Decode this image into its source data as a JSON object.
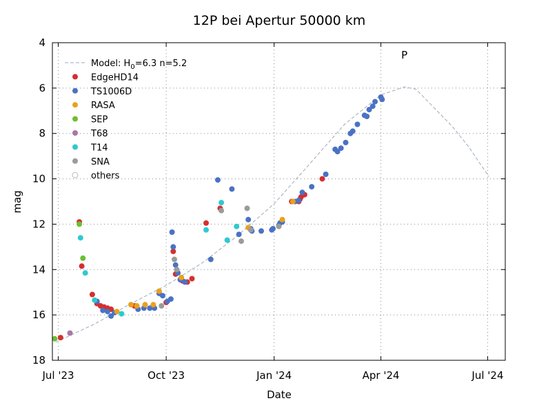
{
  "chart_data": {
    "type": "scatter",
    "title": "12P bei Apertur 50000 km",
    "xlabel": "Date",
    "ylabel": "mag",
    "x_axis": {
      "kind": "date",
      "range": [
        "2023-06-26",
        "2024-07-16"
      ],
      "ticks": [
        {
          "date": "2023-07-01",
          "label": "Jul '23"
        },
        {
          "date": "2023-10-01",
          "label": "Oct '23"
        },
        {
          "date": "2024-01-01",
          "label": "Jan '24"
        },
        {
          "date": "2024-04-01",
          "label": "Apr '24"
        },
        {
          "date": "2024-07-01",
          "label": "Jul '24"
        }
      ]
    },
    "y_axis": {
      "range": [
        4,
        18
      ],
      "inverted": true,
      "ticks": [
        4,
        6,
        8,
        10,
        12,
        14,
        16,
        18
      ]
    },
    "grid": true,
    "legend_position": "top-left",
    "annotations": [
      {
        "text": "P",
        "date": "2024-04-21",
        "mag": 4.7
      }
    ],
    "model": {
      "name": "Model: H0=6.3 n=5.2",
      "name_main": "Model: H",
      "name_sub": "0",
      "name_rest": "=6.3 n=5.2",
      "color": "#9aa9b8",
      "points": [
        [
          "2023-06-29",
          17.2
        ],
        [
          "2023-08-01",
          16.4
        ],
        [
          "2023-09-01",
          15.5
        ],
        [
          "2023-10-01",
          14.7
        ],
        [
          "2023-11-01",
          13.7
        ],
        [
          "2023-12-01",
          12.5
        ],
        [
          "2024-01-01",
          11.1
        ],
        [
          "2024-02-01",
          9.3
        ],
        [
          "2024-03-01",
          7.6
        ],
        [
          "2024-04-01",
          6.3
        ],
        [
          "2024-04-21",
          5.95
        ],
        [
          "2024-05-01",
          6.05
        ],
        [
          "2024-05-15",
          6.8
        ],
        [
          "2024-06-01",
          7.7
        ],
        [
          "2024-06-15",
          8.6
        ],
        [
          "2024-07-02",
          9.9
        ]
      ]
    },
    "series": [
      {
        "name": "EdgeHD14",
        "color": "#d62f2f",
        "points": [
          [
            "2023-07-03",
            17.0
          ],
          [
            "2023-07-19",
            11.9
          ],
          [
            "2023-07-21",
            13.85
          ],
          [
            "2023-07-30",
            15.1
          ],
          [
            "2023-08-03",
            15.5
          ],
          [
            "2023-08-06",
            15.6
          ],
          [
            "2023-08-09",
            15.65
          ],
          [
            "2023-08-12",
            15.7
          ],
          [
            "2023-08-15",
            15.75
          ],
          [
            "2023-09-04",
            15.6
          ],
          [
            "2023-10-01",
            15.45
          ],
          [
            "2023-10-07",
            13.2
          ],
          [
            "2023-10-09",
            14.2
          ],
          [
            "2023-10-15",
            14.5
          ],
          [
            "2023-10-19",
            14.55
          ],
          [
            "2023-10-23",
            14.4
          ],
          [
            "2023-11-04",
            11.95
          ],
          [
            "2023-11-16",
            11.3
          ],
          [
            "2024-01-16",
            11.0
          ],
          [
            "2024-01-22",
            11.0
          ],
          [
            "2024-01-23",
            10.9
          ],
          [
            "2024-01-24",
            10.8
          ],
          [
            "2024-01-27",
            10.7
          ],
          [
            "2024-02-11",
            10.0
          ]
        ]
      },
      {
        "name": "TS1006D",
        "color": "#4a72c4",
        "points": [
          [
            "2023-08-03",
            15.4
          ],
          [
            "2023-08-08",
            15.8
          ],
          [
            "2023-08-12",
            15.85
          ],
          [
            "2023-08-15",
            16.05
          ],
          [
            "2023-08-18",
            15.9
          ],
          [
            "2023-09-07",
            15.75
          ],
          [
            "2023-09-12",
            15.7
          ],
          [
            "2023-09-17",
            15.7
          ],
          [
            "2023-09-21",
            15.7
          ],
          [
            "2023-09-25",
            15.05
          ],
          [
            "2023-09-28",
            15.15
          ],
          [
            "2023-10-02",
            15.4
          ],
          [
            "2023-10-05",
            15.3
          ],
          [
            "2023-10-06",
            12.35
          ],
          [
            "2023-10-07",
            13.0
          ],
          [
            "2023-10-09",
            13.8
          ],
          [
            "2023-10-11",
            14.15
          ],
          [
            "2023-10-13",
            14.45
          ],
          [
            "2023-10-17",
            14.55
          ],
          [
            "2023-11-08",
            13.55
          ],
          [
            "2023-11-14",
            10.05
          ],
          [
            "2023-11-26",
            10.45
          ],
          [
            "2023-12-02",
            12.45
          ],
          [
            "2023-12-10",
            11.8
          ],
          [
            "2023-12-12",
            12.2
          ],
          [
            "2023-12-13",
            12.3
          ],
          [
            "2023-12-21",
            12.3
          ],
          [
            "2023-12-30",
            12.25
          ],
          [
            "2023-12-31",
            12.2
          ],
          [
            "2024-01-05",
            12.05
          ],
          [
            "2024-01-06",
            11.95
          ],
          [
            "2024-01-08",
            11.9
          ],
          [
            "2024-01-19",
            11.0
          ],
          [
            "2024-01-22",
            10.95
          ],
          [
            "2024-01-25",
            10.6
          ],
          [
            "2024-02-02",
            10.35
          ],
          [
            "2024-02-14",
            9.8
          ],
          [
            "2024-02-22",
            8.7
          ],
          [
            "2024-02-24",
            8.8
          ],
          [
            "2024-02-27",
            8.65
          ],
          [
            "2024-03-02",
            8.4
          ],
          [
            "2024-03-06",
            8.0
          ],
          [
            "2024-03-08",
            7.9
          ],
          [
            "2024-03-12",
            7.6
          ],
          [
            "2024-03-18",
            7.2
          ],
          [
            "2024-03-20",
            7.25
          ],
          [
            "2024-03-22",
            6.95
          ],
          [
            "2024-03-25",
            6.8
          ],
          [
            "2024-03-27",
            6.6
          ],
          [
            "2024-04-01",
            6.4
          ],
          [
            "2024-04-02",
            6.5
          ]
        ]
      },
      {
        "name": "RASA",
        "color": "#e8a21e",
        "points": [
          [
            "2023-08-20",
            15.85
          ],
          [
            "2023-09-01",
            15.55
          ],
          [
            "2023-09-06",
            15.6
          ],
          [
            "2023-09-13",
            15.55
          ],
          [
            "2023-09-20",
            15.55
          ],
          [
            "2023-09-25",
            14.95
          ],
          [
            "2023-10-14",
            14.35
          ],
          [
            "2023-12-10",
            12.15
          ],
          [
            "2024-01-08",
            11.8
          ],
          [
            "2024-01-17",
            11.0
          ]
        ]
      },
      {
        "name": "SEP",
        "color": "#6cbf31",
        "points": [
          [
            "2023-06-28",
            17.05
          ],
          [
            "2023-07-19",
            12.0
          ],
          [
            "2023-07-22",
            13.5
          ]
        ]
      },
      {
        "name": "T68",
        "color": "#aa77a6",
        "points": [
          [
            "2023-07-11",
            16.8
          ]
        ]
      },
      {
        "name": "T14",
        "color": "#2ec9d1",
        "points": [
          [
            "2023-07-20",
            12.6
          ],
          [
            "2023-07-24",
            14.15
          ],
          [
            "2023-08-01",
            15.35
          ],
          [
            "2023-08-24",
            15.95
          ],
          [
            "2023-11-04",
            12.25
          ],
          [
            "2023-11-17",
            11.05
          ],
          [
            "2023-11-22",
            12.7
          ],
          [
            "2023-11-30",
            12.1
          ]
        ]
      },
      {
        "name": "SNA",
        "color": "#9b9b9b",
        "points": [
          [
            "2023-09-27",
            15.6
          ],
          [
            "2023-10-08",
            13.55
          ],
          [
            "2023-10-10",
            14.0
          ],
          [
            "2023-11-17",
            11.4
          ],
          [
            "2023-12-04",
            12.75
          ],
          [
            "2023-12-09",
            11.3
          ],
          [
            "2023-12-12",
            12.25
          ],
          [
            "2024-01-05",
            12.1
          ]
        ]
      },
      {
        "name": "others",
        "color": "#bbbbbb",
        "hollow": true,
        "points": []
      }
    ]
  }
}
